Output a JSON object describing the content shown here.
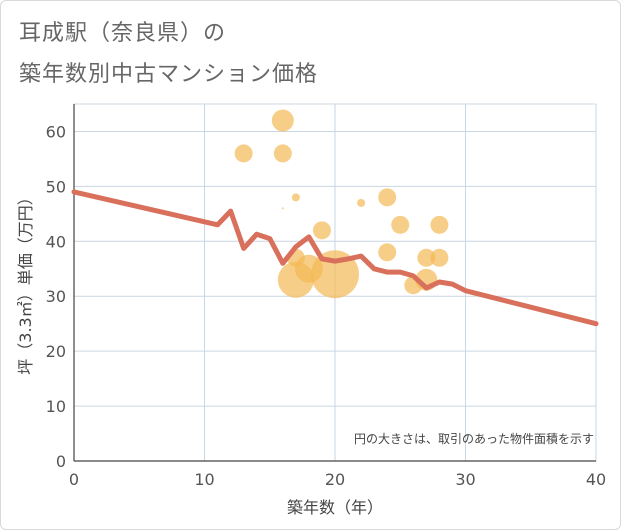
{
  "title_line1": "耳成駅（奈良県）の",
  "title_line2": "築年数別中古マンション価格",
  "chart_data": {
    "type": "scatter",
    "xlabel": "築年数（年）",
    "ylabel": "坪（3.3㎡）単価（万円）",
    "xlim": [
      0,
      40
    ],
    "ylim": [
      0,
      65
    ],
    "xticks": [
      0,
      10,
      20,
      30,
      40
    ],
    "yticks": [
      0,
      10,
      20,
      30,
      40,
      50,
      60
    ],
    "grid": true,
    "note": "円の大きさは、取引のあった物件面積を示す",
    "bubbles": [
      {
        "x": 16,
        "y": 62,
        "size": 11
      },
      {
        "x": 13,
        "y": 56,
        "size": 9
      },
      {
        "x": 16,
        "y": 56,
        "size": 9
      },
      {
        "x": 17,
        "y": 48,
        "size": 4
      },
      {
        "x": 16,
        "y": 46,
        "size": 1
      },
      {
        "x": 22,
        "y": 47,
        "size": 4
      },
      {
        "x": 24,
        "y": 48,
        "size": 9
      },
      {
        "x": 25,
        "y": 43,
        "size": 9
      },
      {
        "x": 28,
        "y": 43,
        "size": 9
      },
      {
        "x": 19,
        "y": 42,
        "size": 9
      },
      {
        "x": 24,
        "y": 38,
        "size": 9
      },
      {
        "x": 27,
        "y": 37,
        "size": 9
      },
      {
        "x": 28,
        "y": 37,
        "size": 9
      },
      {
        "x": 17,
        "y": 37,
        "size": 9
      },
      {
        "x": 18,
        "y": 35,
        "size": 14
      },
      {
        "x": 17,
        "y": 33,
        "size": 18
      },
      {
        "x": 20,
        "y": 34,
        "size": 24
      },
      {
        "x": 27,
        "y": 33,
        "size": 11
      },
      {
        "x": 26,
        "y": 32,
        "size": 9
      }
    ],
    "line": {
      "x": [
        0,
        11,
        11,
        12,
        13,
        14,
        15,
        16,
        17,
        18,
        19,
        20,
        21,
        22,
        23,
        24,
        25,
        26,
        27,
        28,
        29,
        30,
        40
      ],
      "y": [
        49,
        43,
        43,
        45.5,
        38.7,
        41.3,
        40.5,
        36,
        39,
        40.8,
        36.8,
        36.4,
        36.8,
        37.3,
        35,
        34.4,
        34.4,
        33.7,
        31.5,
        32.6,
        32.2,
        31,
        25
      ]
    },
    "colors": {
      "bubble": "#f3b955",
      "line": "#d9705c",
      "grid": "#c9d6e3"
    }
  }
}
